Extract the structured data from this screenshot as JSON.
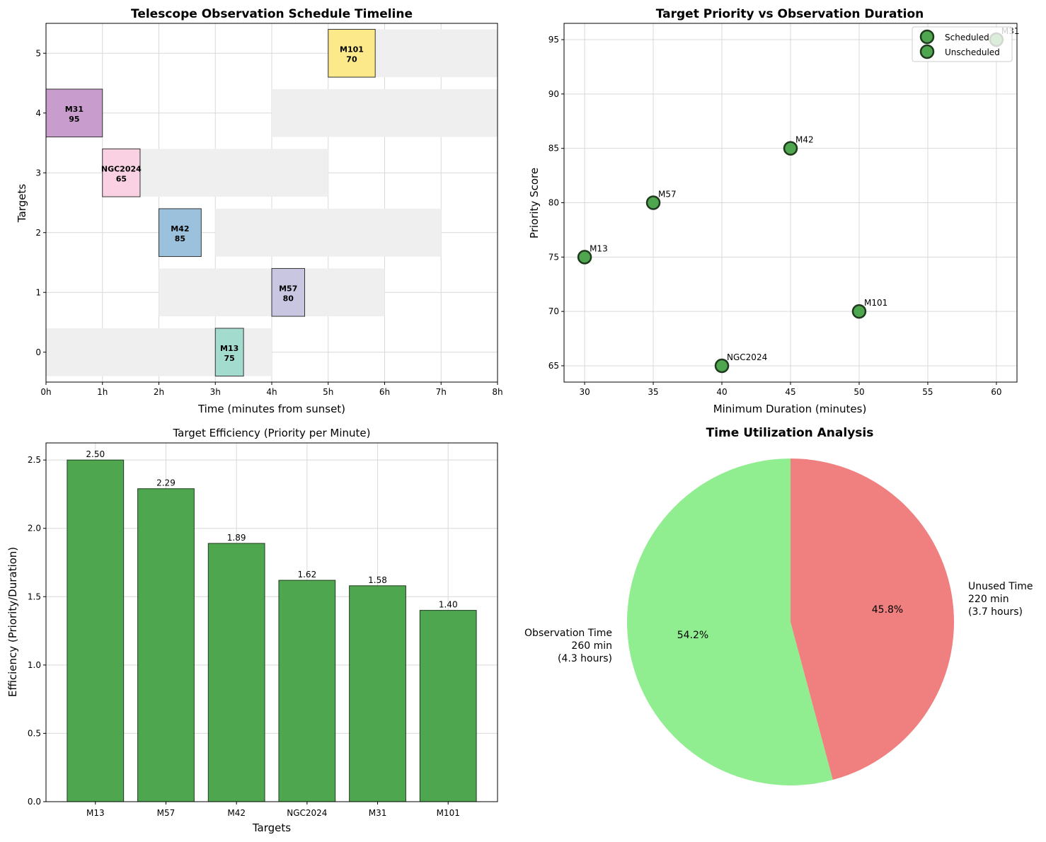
{
  "colors": {
    "green": "#4ea64e",
    "green_edge": "#1f3a1f",
    "window_fill": "#efefef",
    "pie_obs": "#90ee90",
    "pie_unused": "#f08080",
    "grid": "#d9d9d9"
  },
  "chart_data": [
    {
      "type": "timeline",
      "title": "Telescope Observation Schedule Timeline",
      "xlabel": "Time (minutes from sunset)",
      "ylabel": "Targets",
      "xlim": [
        0,
        8
      ],
      "ylim": [
        -0.5,
        5.5
      ],
      "xtick_labels": [
        "0h",
        "1h",
        "2h",
        "3h",
        "4h",
        "5h",
        "6h",
        "7h",
        "8h"
      ],
      "ytick_labels": [
        "0",
        "1",
        "2",
        "3",
        "4",
        "5"
      ],
      "visibility_windows": [
        {
          "row": 0,
          "start": 0,
          "end": 4
        },
        {
          "row": 1,
          "start": 2,
          "end": 6
        },
        {
          "row": 2,
          "start": 3,
          "end": 7
        },
        {
          "row": 3,
          "start": 1,
          "end": 5
        },
        {
          "row": 4,
          "start": 4,
          "end": 8
        },
        {
          "row": 5,
          "start": 5,
          "end": 8
        }
      ],
      "observations": [
        {
          "row": 0,
          "name": "M13",
          "priority": "75",
          "start": 3.0,
          "duration": 0.5,
          "color": "#a3dbcf"
        },
        {
          "row": 1,
          "name": "M57",
          "priority": "80",
          "start": 4.0,
          "duration": 0.583,
          "color": "#c8c6e1"
        },
        {
          "row": 2,
          "name": "M42",
          "priority": "85",
          "start": 2.0,
          "duration": 0.75,
          "color": "#9cc1dc"
        },
        {
          "row": 3,
          "name": "NGC2024",
          "priority": "65",
          "start": 1.0,
          "duration": 0.667,
          "color": "#f9d1e3"
        },
        {
          "row": 4,
          "name": "M31",
          "priority": "95",
          "start": 0.0,
          "duration": 1.0,
          "color": "#c89ccc"
        },
        {
          "row": 5,
          "name": "M101",
          "priority": "70",
          "start": 5.0,
          "duration": 0.833,
          "color": "#fbe98a"
        }
      ]
    },
    {
      "type": "scatter",
      "title": "Target Priority vs Observation Duration",
      "xlabel": "Minimum Duration (minutes)",
      "ylabel": "Priority Score",
      "xlim": [
        28.5,
        61.5
      ],
      "ylim": [
        63.5,
        96.5
      ],
      "xticks": [
        30,
        35,
        40,
        45,
        50,
        55,
        60
      ],
      "yticks": [
        65,
        70,
        75,
        80,
        85,
        90,
        95
      ],
      "points": [
        {
          "name": "M13",
          "x": 30,
          "y": 75
        },
        {
          "name": "M57",
          "x": 35,
          "y": 80
        },
        {
          "name": "M42",
          "x": 45,
          "y": 85
        },
        {
          "name": "NGC2024",
          "x": 40,
          "y": 65
        },
        {
          "name": "M101",
          "x": 50,
          "y": 70
        },
        {
          "name": "M31",
          "x": 60,
          "y": 95
        }
      ],
      "legend": [
        "Scheduled",
        "Unscheduled"
      ],
      "legend_position": "top-right"
    },
    {
      "type": "bar",
      "title": "Target Efficiency (Priority per Minute)",
      "xlabel": "Targets",
      "ylabel": "Efficiency (Priority/Duration)",
      "categories": [
        "M13",
        "M57",
        "M42",
        "NGC2024",
        "M31",
        "M101"
      ],
      "values": [
        2.5,
        2.29,
        1.89,
        1.62,
        1.58,
        1.4
      ],
      "value_labels": [
        "2.50",
        "2.29",
        "1.89",
        "1.62",
        "1.58",
        "1.40"
      ],
      "ylim": [
        0,
        2.625
      ],
      "yticks": [
        "0.0",
        "0.5",
        "1.0",
        "1.5",
        "2.0",
        "2.5"
      ]
    },
    {
      "type": "pie",
      "title": "Time Utilization Analysis",
      "slices": [
        {
          "label": "Observation Time",
          "line2": "260 min",
          "line3": "(4.3 hours)",
          "value": 260,
          "pct": "54.2%"
        },
        {
          "label": "Unused Time",
          "line2": "220 min",
          "line3": "(3.7 hours)",
          "value": 220,
          "pct": "45.8%"
        }
      ]
    }
  ]
}
